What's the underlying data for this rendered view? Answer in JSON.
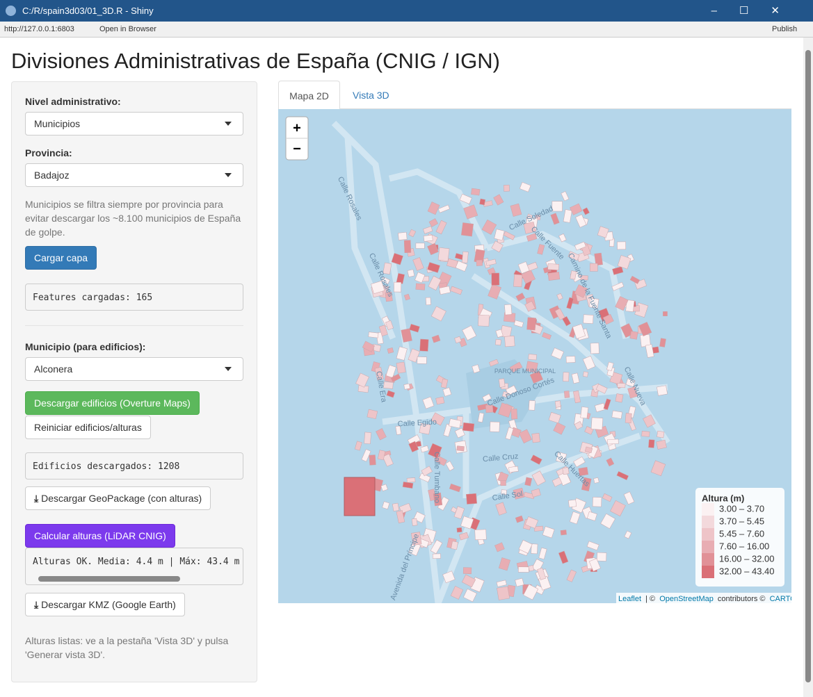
{
  "window": {
    "title": "C:/R/spain3d03/01_3D.R - Shiny",
    "address": "http://127.0.0.1:6803",
    "open_in_browser": "Open in Browser",
    "publish": "Publish"
  },
  "page": {
    "title": "Divisiones Administrativas de España (CNIG / IGN)"
  },
  "sidebar": {
    "nivel": {
      "label": "Nivel administrativo:",
      "value": "Municipios"
    },
    "provincia": {
      "label": "Provincia:",
      "value": "Badajoz"
    },
    "help": "Municipios se filtra siempre por provincia para evitar descargar los ~8.100 municipios de España de golpe.",
    "cargar": "Cargar capa",
    "features": "Features cargadas: 165",
    "municipio": {
      "label": "Municipio (para edificios):",
      "value": "Alconera"
    },
    "descargar_edificios": "Descargar edificios (Overture Maps)",
    "reiniciar": "Reiniciar edificios/alturas",
    "edificios": "Edificios descargados: 1208",
    "gpkg": "Descargar GeoPackage (con alturas)",
    "calcular": "Calcular alturas (LiDAR CNIG)",
    "alturas": "Alturas OK. Media: 4.4 m | Máx: 43.4 m",
    "kmz": "Descargar KMZ (Google Earth)",
    "final": "Alturas listas: ve a la pestaña 'Vista 3D' y pulsa 'Generar vista 3D'."
  },
  "tabs": [
    "Mapa 2D",
    "Vista 3D"
  ],
  "map": {
    "zoom_in": "+",
    "zoom_out": "−",
    "legend": {
      "title": "Altura (m)",
      "items": [
        {
          "label": "3.00 – 3.70",
          "color": "#fbf1f2"
        },
        {
          "label": "3.70 – 5.45",
          "color": "#f3d9dc"
        },
        {
          "label": "5.45 – 7.60",
          "color": "#eec4c8"
        },
        {
          "label": "7.60 – 16.00",
          "color": "#e8adb3"
        },
        {
          "label": "16.00 – 32.00",
          "color": "#e19197"
        },
        {
          "label": "32.00 – 43.40",
          "color": "#da7077"
        }
      ]
    },
    "attribution": {
      "leaflet": "Leaflet",
      "sep": "| ©",
      "osm": "OpenStreetMap",
      "contrib": "contributors ©",
      "carto": "CARTO"
    },
    "labels": [
      "Calle Rosales",
      "Calle Rosales",
      "Calle Egido",
      "Calle Era",
      "Calle Tumbano",
      "Calle Cruz",
      "Calle Sol",
      "Avenida del Príncipe",
      "Calle Donoso Cortés",
      "Calle Nueva",
      "PARQUE MUNICIPAL",
      "Calle Soledad",
      "Calle Fuente",
      "Camino de la Fuente Santa",
      "Calle Huertas"
    ]
  }
}
